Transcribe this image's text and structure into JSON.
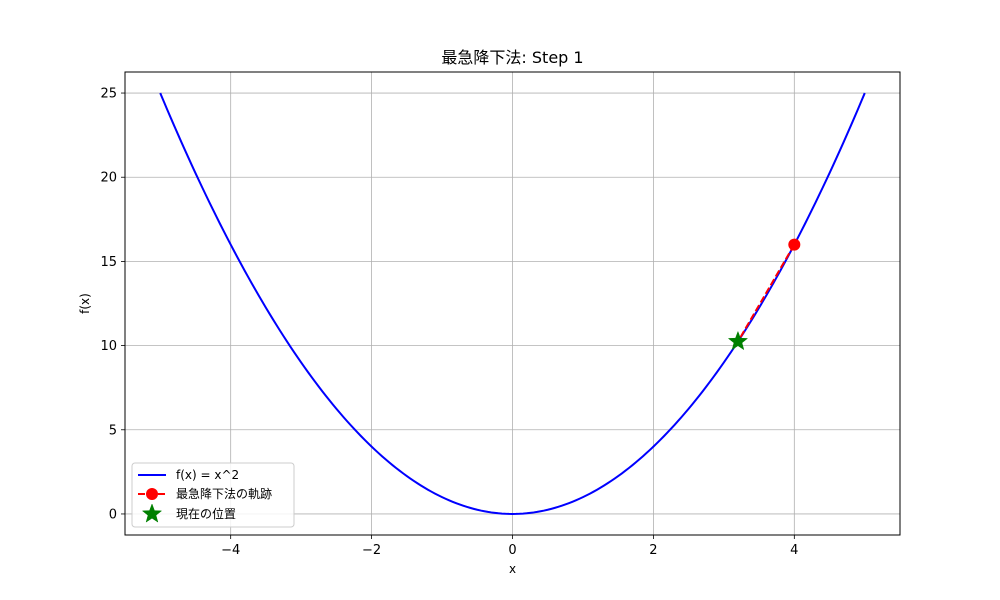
{
  "chart_data": {
    "type": "line",
    "title": "最急降下法: Step 1",
    "xlabel": "x",
    "ylabel": "f(x)",
    "xlim": [
      -5.5,
      5.5
    ],
    "ylim": [
      -1.25,
      26.25
    ],
    "xticks": [
      -4,
      -2,
      0,
      2,
      4
    ],
    "yticks": [
      0,
      5,
      10,
      15,
      20,
      25
    ],
    "xtick_labels": [
      "−4",
      "−2",
      "0",
      "2",
      "4"
    ],
    "ytick_labels": [
      "0",
      "5",
      "10",
      "15",
      "20",
      "25"
    ],
    "grid": true,
    "legend_position": "lower-left",
    "series": [
      {
        "name": "f(x) = x^2",
        "kind": "curve",
        "function": "x^2",
        "domain": [
          -5,
          5
        ],
        "color": "#0000ff",
        "style": "solid"
      },
      {
        "name": "最急降下法の軌跡",
        "kind": "trajectory",
        "x": [
          4.0,
          3.2
        ],
        "y": [
          16.0,
          10.24
        ],
        "color": "#ff0000",
        "style": "dashed",
        "marker": "circle",
        "marker_points": [
          0
        ]
      },
      {
        "name": "現在の位置",
        "kind": "point",
        "x": [
          3.2
        ],
        "y": [
          10.24
        ],
        "color": "#008000",
        "marker": "star"
      }
    ]
  }
}
